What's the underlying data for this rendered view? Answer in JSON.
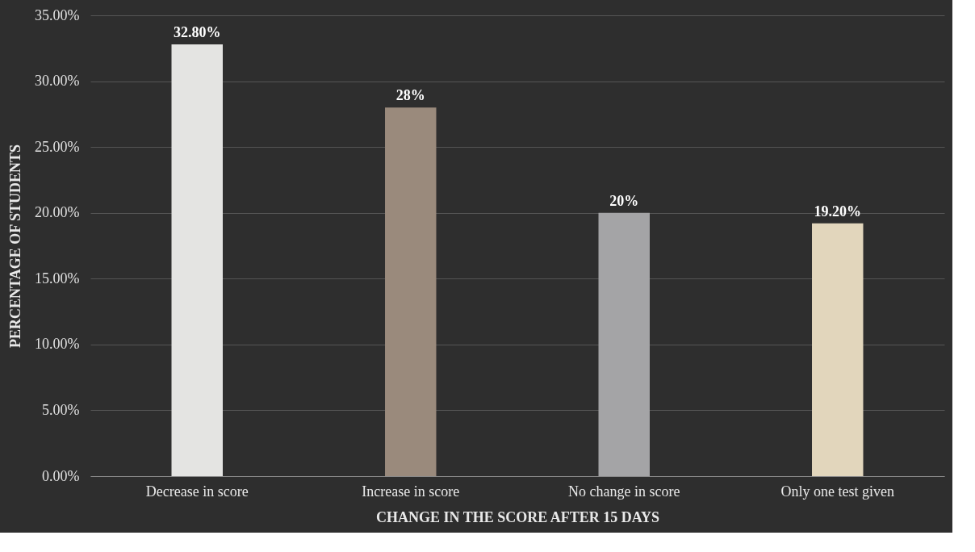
{
  "chart_data": {
    "type": "bar",
    "xlabel": "CHANGE IN THE SCORE AFTER 15 DAYS",
    "ylabel": "PERCENTAGE OF STUDENTS",
    "categories": [
      "Decrease in score",
      "Increase in score",
      "No change in score",
      "Only one test given"
    ],
    "values": [
      32.8,
      28,
      20,
      19.2
    ],
    "colors": [
      "#e4e4e2",
      "#9a8a7c",
      "#a4a4a6",
      "#e2d6bc"
    ],
    "value_labels": [
      "32.80%",
      "28%",
      "20%",
      "19.20%"
    ],
    "ylim": [
      0,
      35
    ],
    "yticks": [
      {
        "value": 0,
        "label": "0.00%"
      },
      {
        "value": 5,
        "label": "5.00%"
      },
      {
        "value": 10,
        "label": "10.00%"
      },
      {
        "value": 15,
        "label": "15.00%"
      },
      {
        "value": 20,
        "label": "20.00%"
      },
      {
        "value": 25,
        "label": "25.00%"
      },
      {
        "value": 30,
        "label": "30.00%"
      },
      {
        "value": 35,
        "label": "35.00%"
      }
    ],
    "grid": "y"
  }
}
